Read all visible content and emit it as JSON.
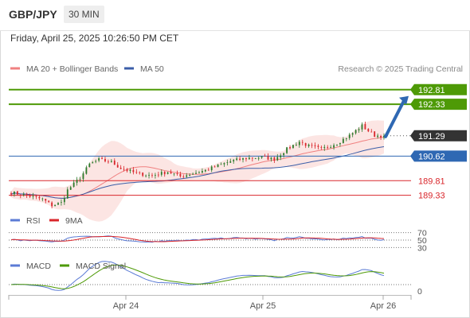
{
  "header": {
    "symbol": "GBP/JPY",
    "timeframe": "30 MIN",
    "timestamp": "Friday, April 25, 2025 10:26:50 PM CET"
  },
  "colors": {
    "resistance": "#4e9a06",
    "support": "#d9262b",
    "pivot": "#2f68b3",
    "ma20": "#f08080",
    "ma50": "#3b5ea8",
    "bollinger_fill": "#fbe0de",
    "candle_up": "#2b7a2b",
    "candle_down": "#d9262b",
    "rsi": "#5b7bd5",
    "rsi_ma": "#d9262b",
    "macd": "#5b7bd5",
    "macd_signal": "#4e9a06",
    "last_price_bg": "#333333",
    "arrow": "#2f68b3"
  },
  "chart_data": [
    {
      "type": "candlestick",
      "panel": "price",
      "legend": [
        {
          "name": "MA 20 + Bollinger Bands",
          "color": "#f08080"
        },
        {
          "name": "MA 50",
          "color": "#3b5ea8"
        }
      ],
      "source_credit": "Research © 2025 Trading Central",
      "x_ticks": [
        "Apr 24",
        "Apr 25",
        "Apr 26"
      ],
      "ylim": [
        188.9,
        193.25
      ],
      "last_price": 191.29,
      "levels": [
        {
          "value": 192.81,
          "label": "192.81",
          "kind": "resistance"
        },
        {
          "value": 192.33,
          "label": "192.33",
          "kind": "resistance"
        },
        {
          "value": 191.29,
          "label": "191.29",
          "kind": "last"
        },
        {
          "value": 190.62,
          "label": "190.62",
          "kind": "pivot"
        },
        {
          "value": 189.81,
          "label": "189.81",
          "kind": "support"
        },
        {
          "value": 189.33,
          "label": "189.33",
          "kind": "support"
        }
      ],
      "forecast_arrow": {
        "from": 191.29,
        "to": 192.81,
        "direction": "up"
      },
      "series_path": {
        "x_start": "Apr 23 14:00",
        "bars": 120,
        "anchors": [
          [
            0,
            189.42
          ],
          [
            6,
            189.3
          ],
          [
            10,
            189.2
          ],
          [
            13,
            189.0
          ],
          [
            16,
            189.08
          ],
          [
            18,
            189.5
          ],
          [
            22,
            189.9
          ],
          [
            25,
            190.35
          ],
          [
            28,
            190.5
          ],
          [
            32,
            190.42
          ],
          [
            35,
            190.22
          ],
          [
            40,
            190.05
          ],
          [
            45,
            189.98
          ],
          [
            50,
            190.1
          ],
          [
            54,
            189.95
          ],
          [
            58,
            190.05
          ],
          [
            62,
            190.15
          ],
          [
            66,
            190.3
          ],
          [
            70,
            190.45
          ],
          [
            75,
            190.55
          ],
          [
            80,
            190.58
          ],
          [
            84,
            190.52
          ],
          [
            88,
            190.85
          ],
          [
            92,
            191.1
          ],
          [
            95,
            190.95
          ],
          [
            99,
            190.85
          ],
          [
            104,
            191.05
          ],
          [
            108,
            191.3
          ],
          [
            112,
            191.62
          ],
          [
            114,
            191.45
          ],
          [
            116,
            191.3
          ],
          [
            119,
            191.29
          ]
        ]
      }
    },
    {
      "type": "line",
      "panel": "rsi",
      "series": [
        {
          "name": "RSI",
          "color": "#5b7bd5"
        },
        {
          "name": "9MA",
          "color": "#d9262b"
        }
      ],
      "levels": [
        70,
        50,
        30
      ],
      "level_labels": [
        "70",
        "50",
        "30"
      ]
    },
    {
      "type": "line",
      "panel": "macd",
      "series": [
        {
          "name": "MACD",
          "color": "#5b7bd5"
        },
        {
          "name": "MACD Signal",
          "color": "#4e9a06"
        }
      ],
      "levels": [
        0
      ],
      "level_labels": [
        "0"
      ]
    }
  ]
}
